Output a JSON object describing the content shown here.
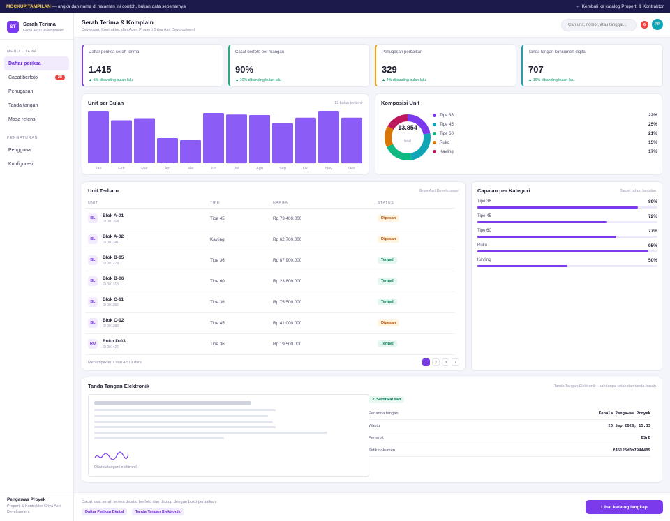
{
  "banner": {
    "tag": "MOCKUP TAMPILAN",
    "text": "— angka dan nama di halaman ini contoh, bukan data sebenarnya",
    "back": "← Kembali ke katalog Properti & Kontraktor"
  },
  "sidebar": {
    "logo": "ST",
    "title": "Serah Terima",
    "subtitle": "Griya Asri Development",
    "section_main": "MENU UTAMA",
    "items": [
      {
        "label": "Daftar periksa",
        "active": true
      },
      {
        "label": "Cacat berfoto",
        "badge": "28"
      },
      {
        "label": "Penugasan"
      },
      {
        "label": "Tanda tangan"
      },
      {
        "label": "Masa retensi"
      }
    ],
    "section_settings": "PENGATURAN",
    "settings": [
      {
        "label": "Pengguna"
      },
      {
        "label": "Konfigurasi"
      }
    ],
    "user": {
      "name": "Pengawas Proyek",
      "role": "Properti & Kontraktor Griya Asri Development"
    }
  },
  "header": {
    "title": "Serah Terima & Komplain",
    "subtitle": "Developer, Kontraktor, dan Agen Properti Griya Asri Development",
    "search_placeholder": "Cari unit, nomor, atau tanggal...",
    "notif": "6",
    "avatar": "PP"
  },
  "kpis": [
    {
      "label": "Daftar periksa serah terima",
      "value": "1.415",
      "delta": "▲ 5% dibanding bulan lalu",
      "color": "#7c3aed"
    },
    {
      "label": "Cacat berfoto per ruangan",
      "value": "90%",
      "delta": "▲ 10% dibanding bulan lalu",
      "color": "#10b981"
    },
    {
      "label": "Penugasan perbaikan",
      "value": "329",
      "delta": "▲ 4% dibanding bulan lalu",
      "color": "#f59e0b"
    },
    {
      "label": "Tanda tangan konsumen digital",
      "value": "707",
      "delta": "▲ 16% dibanding bulan lalu",
      "color": "#0ea5b7"
    }
  ],
  "chart_data": [
    {
      "type": "bar",
      "title": "Unit per Bulan",
      "note": "12 bulan terakhir",
      "categories": [
        "Jan",
        "Feb",
        "Mar",
        "Apr",
        "Mei",
        "Jun",
        "Jul",
        "Agu",
        "Sep",
        "Okt",
        "Nov",
        "Des"
      ],
      "values": [
        100,
        82,
        86,
        48,
        44,
        96,
        93,
        92,
        77,
        87,
        100,
        87
      ],
      "color": "#8b5cf6"
    },
    {
      "type": "pie",
      "title": "Komposisi Unit",
      "total": "13.854",
      "total_label": "total",
      "slices": [
        {
          "name": "Tipe 36",
          "value": 22,
          "label": "22%",
          "color": "#7c3aed"
        },
        {
          "name": "Tipe 45",
          "value": 25,
          "label": "25%",
          "color": "#0ea5b7"
        },
        {
          "name": "Tipe 60",
          "value": 21,
          "label": "21%",
          "color": "#10b981"
        },
        {
          "name": "Ruko",
          "value": 15,
          "label": "15%",
          "color": "#d97706"
        },
        {
          "name": "Kavling",
          "value": 17,
          "label": "17%",
          "color": "#be185d"
        }
      ]
    }
  ],
  "table": {
    "title": "Unit Terbaru",
    "note": "Griya Asri Development",
    "columns": [
      "UNIT",
      "TIPE",
      "HARGA",
      "STATUS"
    ],
    "rows": [
      {
        "init": "BL",
        "name": "Blok A-01",
        "id": "ID 001204",
        "type": "Tipe 45",
        "price": "Rp 73.400.000",
        "status": "Dipesan",
        "s": "wait"
      },
      {
        "init": "BL",
        "name": "Blok A-02",
        "id": "ID 001241",
        "type": "Kavling",
        "price": "Rp 62.700.000",
        "status": "Dipesan",
        "s": "wait"
      },
      {
        "init": "BL",
        "name": "Blok B-05",
        "id": "ID 001278",
        "type": "Tipe 36",
        "price": "Rp 87.900.000",
        "status": "Terjual",
        "s": "sold"
      },
      {
        "init": "BL",
        "name": "Blok B-06",
        "id": "ID 001315",
        "type": "Tipe 60",
        "price": "Rp 23.800.000",
        "status": "Terjual",
        "s": "sold"
      },
      {
        "init": "BL",
        "name": "Blok C-11",
        "id": "ID 001352",
        "type": "Tipe 36",
        "price": "Rp 75.500.000",
        "status": "Terjual",
        "s": "sold"
      },
      {
        "init": "BL",
        "name": "Blok C-12",
        "id": "ID 001389",
        "type": "Tipe 45",
        "price": "Rp 41.000.000",
        "status": "Dipesan",
        "s": "wait"
      },
      {
        "init": "RU",
        "name": "Ruko D-03",
        "id": "ID 001426",
        "type": "Tipe 36",
        "price": "Rp 19.500.000",
        "status": "Terjual",
        "s": "sold"
      }
    ],
    "footer": "Menampilkan 7 dari 4.519 data",
    "pages": [
      "1",
      "2",
      "3",
      "›"
    ]
  },
  "categories": {
    "title": "Capaian per Kategori",
    "note": "Target tahun berjalan",
    "items": [
      {
        "name": "Tipe 36",
        "label": "89%",
        "value": 89
      },
      {
        "name": "Tipe 45",
        "label": "72%",
        "value": 72
      },
      {
        "name": "Tipe 60",
        "label": "77%",
        "value": 77
      },
      {
        "name": "Ruko",
        "label": "95%",
        "value": 95
      },
      {
        "name": "Kavling",
        "label": "50%",
        "value": 50
      }
    ]
  },
  "signature": {
    "title": "Tanda Tangan Elektronik",
    "note": "Tanda Tangan Elektronik · sah tanpa cetak dan tanda basah",
    "caption": "Ditandatangani elektronik",
    "cert": "✓ Sertifikat sah",
    "fields": [
      {
        "k": "Penanda tangan",
        "v": "Kepala Pengawas Proyek"
      },
      {
        "k": "Waktu",
        "v": "20 Sep 2026, 15.33"
      },
      {
        "k": "Penerbit",
        "v": "BSrE"
      },
      {
        "k": "Sidik dokumen",
        "v": "f45125d0b7944409"
      }
    ]
  },
  "footer": {
    "text": "Cacat saat serah terima dicatat berfoto dan ditutup dengan bukti perbaikan.",
    "chips": [
      "Daftar Periksa Digital",
      "Tanda Tangan Elektronik"
    ],
    "cta": "Lihat katalog lengkap"
  }
}
